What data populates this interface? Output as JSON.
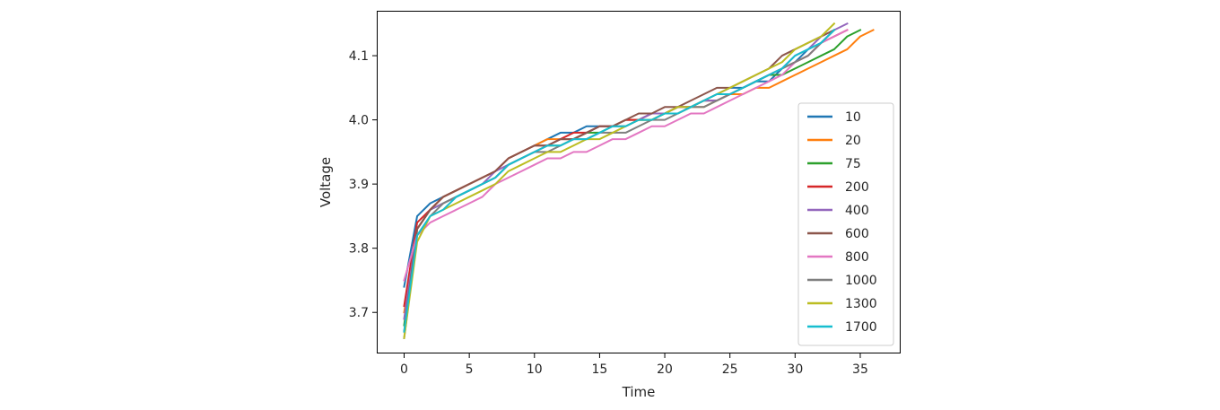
{
  "chart_data": {
    "type": "line",
    "xlabel": "Time",
    "ylabel": "Voltage",
    "xlim": [
      -2.1,
      38.1
    ],
    "ylim": [
      3.636,
      4.17
    ],
    "xticks": [
      0,
      5,
      10,
      15,
      20,
      25,
      30,
      35
    ],
    "yticks": [
      3.7,
      3.8,
      3.9,
      4.0,
      4.1
    ],
    "ytick_labels": [
      "3.7",
      "3.8",
      "3.9",
      "4.0",
      "4.1"
    ],
    "grid": false,
    "legend_position": "lower-right",
    "series": [
      {
        "name": "10",
        "color": "#1f77b4",
        "x": [
          0,
          1,
          2,
          3,
          4,
          5,
          6,
          7,
          8,
          9,
          10,
          11,
          12,
          13,
          14,
          15,
          16,
          17,
          18,
          19,
          20,
          21,
          22,
          23,
          24,
          25,
          26,
          27,
          28,
          29,
          30,
          31,
          32,
          33
        ],
        "y": [
          3.74,
          3.85,
          3.87,
          3.88,
          3.89,
          3.9,
          3.91,
          3.92,
          3.94,
          3.95,
          3.96,
          3.97,
          3.98,
          3.98,
          3.99,
          3.99,
          3.99,
          4.0,
          4.0,
          4.01,
          4.01,
          4.02,
          4.02,
          4.03,
          4.04,
          4.05,
          4.05,
          4.06,
          4.06,
          4.08,
          4.09,
          4.11,
          4.12,
          4.14
        ]
      },
      {
        "name": "20",
        "color": "#ff7f0e",
        "x": [
          0,
          1,
          2,
          3,
          4,
          5,
          6,
          7,
          8,
          9,
          10,
          11,
          12,
          13,
          14,
          15,
          16,
          17,
          18,
          19,
          20,
          21,
          22,
          23,
          24,
          25,
          26,
          27,
          28,
          29,
          30,
          31,
          32,
          33,
          34,
          35,
          36
        ],
        "y": [
          3.7,
          3.83,
          3.86,
          3.88,
          3.89,
          3.9,
          3.91,
          3.92,
          3.94,
          3.95,
          3.96,
          3.97,
          3.97,
          3.97,
          3.98,
          3.99,
          3.99,
          4.0,
          4.0,
          4.0,
          4.01,
          4.01,
          4.02,
          4.02,
          4.03,
          4.04,
          4.04,
          4.05,
          4.05,
          4.06,
          4.07,
          4.08,
          4.09,
          4.1,
          4.11,
          4.13,
          4.14
        ]
      },
      {
        "name": "75",
        "color": "#2ca02c",
        "x": [
          0,
          1,
          2,
          3,
          4,
          5,
          6,
          7,
          8,
          9,
          10,
          11,
          12,
          13,
          14,
          15,
          16,
          17,
          18,
          19,
          20,
          21,
          22,
          23,
          24,
          25,
          26,
          27,
          28,
          29,
          30,
          31,
          32,
          33,
          34,
          35
        ],
        "y": [
          3.68,
          3.83,
          3.86,
          3.87,
          3.88,
          3.89,
          3.9,
          3.91,
          3.93,
          3.94,
          3.95,
          3.96,
          3.96,
          3.97,
          3.98,
          3.98,
          3.99,
          3.99,
          4.0,
          4.0,
          4.01,
          4.01,
          4.02,
          4.03,
          4.03,
          4.04,
          4.05,
          4.06,
          4.07,
          4.07,
          4.08,
          4.09,
          4.1,
          4.11,
          4.13,
          4.14
        ]
      },
      {
        "name": "200",
        "color": "#d62728",
        "x": [
          0,
          1,
          2,
          3,
          4,
          5,
          6,
          7,
          8,
          9,
          10,
          11,
          12,
          13,
          14,
          15,
          16,
          17,
          18,
          19,
          20,
          21,
          22,
          23,
          24,
          25,
          26,
          27,
          28,
          29,
          30,
          31,
          32,
          33,
          34
        ],
        "y": [
          3.71,
          3.84,
          3.86,
          3.88,
          3.89,
          3.9,
          3.91,
          3.92,
          3.94,
          3.95,
          3.96,
          3.96,
          3.97,
          3.98,
          3.98,
          3.99,
          3.99,
          4.0,
          4.0,
          4.01,
          4.01,
          4.02,
          4.02,
          4.03,
          4.03,
          4.04,
          4.05,
          4.06,
          4.07,
          4.08,
          4.09,
          4.1,
          4.12,
          4.13,
          4.14
        ]
      },
      {
        "name": "400",
        "color": "#9467bd",
        "x": [
          0,
          1,
          2,
          3,
          4,
          5,
          6,
          7,
          8,
          9,
          10,
          11,
          12,
          13,
          14,
          15,
          16,
          17,
          18,
          19,
          20,
          21,
          22,
          23,
          24,
          25,
          26,
          27,
          28,
          29,
          30,
          31,
          32,
          33,
          34
        ],
        "y": [
          3.69,
          3.83,
          3.86,
          3.87,
          3.88,
          3.89,
          3.9,
          3.92,
          3.93,
          3.94,
          3.95,
          3.96,
          3.97,
          3.97,
          3.98,
          3.99,
          3.99,
          3.99,
          4.0,
          4.01,
          4.01,
          4.02,
          4.02,
          4.03,
          4.03,
          4.04,
          4.05,
          4.06,
          4.07,
          4.08,
          4.1,
          4.11,
          4.13,
          4.14,
          4.15
        ]
      },
      {
        "name": "600",
        "color": "#8c564b",
        "x": [
          0,
          1,
          2,
          3,
          4,
          5,
          6,
          7,
          8,
          9,
          10,
          11,
          12,
          13,
          14,
          15,
          16,
          17,
          18,
          19,
          20,
          21,
          22,
          23,
          24,
          25,
          26,
          27,
          28,
          29,
          30,
          31,
          32,
          33
        ],
        "y": [
          3.67,
          3.83,
          3.86,
          3.88,
          3.89,
          3.9,
          3.91,
          3.92,
          3.94,
          3.95,
          3.96,
          3.96,
          3.97,
          3.97,
          3.98,
          3.99,
          3.99,
          4.0,
          4.01,
          4.01,
          4.02,
          4.02,
          4.03,
          4.04,
          4.05,
          4.05,
          4.06,
          4.07,
          4.08,
          4.1,
          4.11,
          4.12,
          4.13,
          4.14
        ]
      },
      {
        "name": "800",
        "color": "#e377c2",
        "x": [
          0,
          1,
          2,
          3,
          4,
          5,
          6,
          7,
          8,
          9,
          10,
          11,
          12,
          13,
          14,
          15,
          16,
          17,
          18,
          19,
          20,
          21,
          22,
          23,
          24,
          25,
          26,
          27,
          28,
          29,
          30,
          31,
          32,
          33,
          34
        ],
        "y": [
          3.75,
          3.82,
          3.84,
          3.85,
          3.86,
          3.87,
          3.88,
          3.9,
          3.91,
          3.92,
          3.93,
          3.94,
          3.94,
          3.95,
          3.95,
          3.96,
          3.97,
          3.97,
          3.98,
          3.99,
          3.99,
          4.0,
          4.01,
          4.01,
          4.02,
          4.03,
          4.04,
          4.05,
          4.06,
          4.07,
          4.09,
          4.1,
          4.12,
          4.13,
          4.14
        ]
      },
      {
        "name": "1000",
        "color": "#7f7f7f",
        "x": [
          0,
          1,
          2,
          3,
          4,
          5,
          6,
          7,
          8,
          9,
          10,
          11,
          12,
          13,
          14,
          15,
          16,
          17,
          18,
          19,
          20,
          21,
          22,
          23,
          24,
          25,
          26,
          27,
          28,
          29,
          30,
          31,
          32,
          33
        ],
        "y": [
          3.66,
          3.82,
          3.85,
          3.87,
          3.88,
          3.89,
          3.9,
          3.91,
          3.93,
          3.94,
          3.95,
          3.95,
          3.96,
          3.97,
          3.97,
          3.98,
          3.98,
          3.98,
          3.99,
          4.0,
          4.0,
          4.01,
          4.02,
          4.02,
          4.03,
          4.04,
          4.05,
          4.06,
          4.07,
          4.08,
          4.09,
          4.1,
          4.12,
          4.14
        ]
      },
      {
        "name": "1300",
        "color": "#bcbd22",
        "x": [
          0,
          1,
          2,
          3,
          4,
          5,
          6,
          7,
          8,
          9,
          10,
          11,
          12,
          13,
          14,
          15,
          16,
          17,
          18,
          19,
          20,
          21,
          22,
          23,
          24,
          25,
          26,
          27,
          28,
          29,
          30,
          31,
          32,
          33
        ],
        "y": [
          3.66,
          3.81,
          3.85,
          3.86,
          3.87,
          3.88,
          3.89,
          3.9,
          3.92,
          3.93,
          3.94,
          3.95,
          3.95,
          3.96,
          3.97,
          3.97,
          3.98,
          3.99,
          4.0,
          4.0,
          4.01,
          4.02,
          4.02,
          4.03,
          4.04,
          4.05,
          4.06,
          4.07,
          4.08,
          4.09,
          4.11,
          4.12,
          4.13,
          4.15
        ]
      },
      {
        "name": "1700",
        "color": "#17becf",
        "x": [
          0,
          1,
          2,
          3,
          4,
          5,
          6,
          7,
          8,
          9,
          10,
          11,
          12,
          13,
          14,
          15,
          16,
          17,
          18,
          19,
          20,
          21,
          22,
          23,
          24,
          25,
          26,
          27,
          28,
          29,
          30,
          31,
          32,
          33
        ],
        "y": [
          3.67,
          3.82,
          3.85,
          3.86,
          3.88,
          3.89,
          3.9,
          3.91,
          3.93,
          3.94,
          3.95,
          3.96,
          3.96,
          3.97,
          3.97,
          3.98,
          3.99,
          3.99,
          4.0,
          4.0,
          4.01,
          4.01,
          4.02,
          4.03,
          4.04,
          4.04,
          4.05,
          4.06,
          4.07,
          4.08,
          4.1,
          4.11,
          4.12,
          4.14
        ]
      }
    ]
  }
}
